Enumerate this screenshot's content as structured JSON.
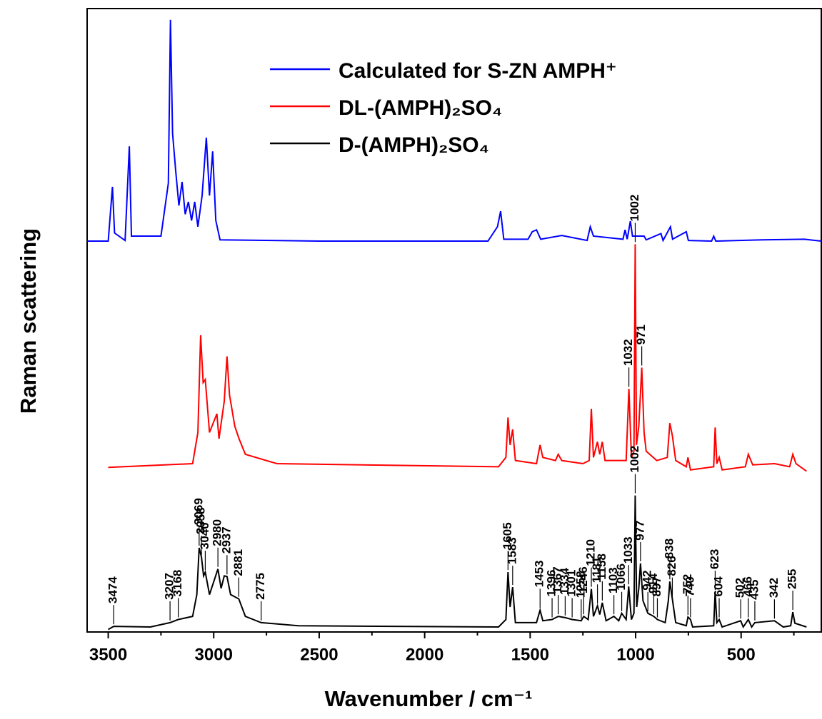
{
  "chart_data": {
    "type": "line",
    "xlabel": "Wavenumber / cm⁻¹",
    "ylabel": "Raman scattering",
    "xlim": [
      3600,
      120
    ],
    "ylim": [
      0,
      100
    ],
    "xticks": [
      3500,
      3000,
      2500,
      2000,
      1500,
      1000,
      500
    ],
    "xminorticks": [
      3250,
      2750,
      2250,
      1750,
      1250,
      750,
      250
    ],
    "series": [
      {
        "name": "Calculated for S-ZN AMPH⁺",
        "color": "#0000ff",
        "x": [
          3600,
          3500,
          3480,
          3470,
          3420,
          3400,
          3390,
          3250,
          3215,
          3205,
          3195,
          3180,
          3165,
          3150,
          3135,
          3120,
          3105,
          3090,
          3075,
          3055,
          3035,
          3020,
          3005,
          2990,
          2970,
          2500,
          1700,
          1655,
          1640,
          1625,
          1510,
          1490,
          1470,
          1450,
          1350,
          1230,
          1215,
          1200,
          1060,
          1050,
          1040,
          1025,
          1015,
          960,
          950,
          880,
          870,
          835,
          825,
          760,
          750,
          640,
          630,
          620,
          400,
          200,
          120
        ],
        "values": [
          62.7,
          62.7,
          71.4,
          64,
          62.8,
          77.9,
          63.5,
          63.5,
          72,
          98.2,
          80,
          73.9,
          68.4,
          72.2,
          67,
          69,
          66,
          69,
          65,
          70,
          79.3,
          70,
          77.1,
          66,
          62.9,
          62.7,
          62.7,
          65,
          67.5,
          63,
          63,
          64.2,
          64.5,
          63,
          63.6,
          62.8,
          65,
          63.5,
          63,
          64.5,
          63,
          65.9,
          63.5,
          63.5,
          62.9,
          63.9,
          62.8,
          65,
          63,
          64.2,
          62.8,
          62.7,
          63.5,
          62.7,
          62.9,
          63,
          62.7
        ]
      },
      {
        "name": "DL-(AMPH)₂SO₄",
        "color": "#ff0000",
        "x": [
          3500,
          3100,
          3075,
          3062,
          3050,
          3040,
          3020,
          2985,
          2975,
          2950,
          2937,
          2925,
          2900,
          2880,
          2850,
          2700,
          1650,
          1615,
          1605,
          1595,
          1583,
          1570,
          1470,
          1453,
          1440,
          1380,
          1367,
          1350,
          1250,
          1220,
          1210,
          1200,
          1181,
          1170,
          1158,
          1145,
          1100,
          1045,
          1032,
          1020,
          1008,
          1002,
          996,
          985,
          971,
          960,
          950,
          900,
          850,
          838,
          826,
          810,
          760,
          752,
          740,
          630,
          623,
          615,
          604,
          590,
          480,
          466,
          445,
          342,
          270,
          255,
          240,
          190
        ],
        "values": [
          26.4,
          27,
          32,
          47.6,
          40,
          40.5,
          32,
          35,
          31,
          37,
          44.2,
          38,
          33,
          31,
          28.5,
          27,
          26.5,
          28,
          34.4,
          30,
          32.5,
          27.5,
          27,
          30,
          28,
          27.5,
          28.5,
          27.5,
          27,
          27.5,
          35.8,
          28,
          30.5,
          28.5,
          30.5,
          27.5,
          27.5,
          27.5,
          39,
          28,
          29,
          62.2,
          30,
          33,
          42.4,
          32,
          29,
          27.5,
          28,
          33.5,
          31.5,
          27.5,
          26.5,
          28,
          26,
          26.5,
          32.8,
          27,
          28,
          26,
          26.5,
          28.5,
          26.8,
          27,
          26.5,
          28.5,
          27,
          25.8
        ],
        "peak_labels": [
          1032,
          1002,
          971
        ]
      },
      {
        "name": "D-(AMPH)₂SO₄",
        "color": "#000000",
        "x": [
          3500,
          3474,
          3300,
          3207,
          3168,
          3100,
          3080,
          3069,
          3058,
          3048,
          3040,
          3020,
          2980,
          2965,
          2950,
          2937,
          2920,
          2881,
          2850,
          2775,
          2600,
          1650,
          1615,
          1605,
          1595,
          1583,
          1570,
          1470,
          1453,
          1440,
          1396,
          1367,
          1334,
          1301,
          1258,
          1246,
          1225,
          1210,
          1200,
          1181,
          1170,
          1158,
          1140,
          1103,
          1080,
          1066,
          1045,
          1033,
          1020,
          1008,
          1002,
          995,
          985,
          977,
          965,
          942,
          914,
          897,
          860,
          845,
          838,
          826,
          810,
          760,
          752,
          740,
          730,
          630,
          623,
          615,
          604,
          590,
          502,
          490,
          466,
          450,
          435,
          342,
          300,
          265,
          255,
          245,
          190
        ],
        "values": [
          0.4,
          0.9,
          0.8,
          1.5,
          2,
          2.5,
          6,
          13.5,
          12,
          9,
          9.6,
          6,
          10.1,
          7,
          9,
          8.9,
          6,
          5.3,
          2.5,
          1.5,
          1,
          0.8,
          2,
          9.6,
          4,
          7.2,
          1.5,
          1.5,
          3.5,
          1.8,
          2,
          2.5,
          2.3,
          2,
          1.8,
          2.5,
          2,
          6.9,
          2.5,
          4.2,
          2.8,
          4.7,
          1.8,
          2.5,
          1.8,
          3,
          2,
          7.3,
          2,
          3,
          21.9,
          4,
          7,
          11,
          5,
          3,
          2.5,
          2,
          1.5,
          5,
          8.1,
          5.3,
          1.5,
          1,
          2.4,
          2,
          0.8,
          1,
          6.4,
          1.5,
          2,
          0.8,
          1.8,
          0.8,
          2,
          0.8,
          1.5,
          1.8,
          0.8,
          1,
          3.2,
          1.4,
          0.8
        ],
        "peak_labels": [
          3474,
          3207,
          3168,
          3069,
          3058,
          3040,
          2980,
          2937,
          2881,
          2775,
          1605,
          1583,
          1453,
          1396,
          1367,
          1334,
          1301,
          1258,
          1246,
          1210,
          1181,
          1158,
          1103,
          1066,
          1033,
          1002,
          977,
          942,
          914,
          897,
          838,
          826,
          752,
          740,
          623,
          604,
          502,
          466,
          435,
          342,
          255
        ]
      }
    ]
  }
}
